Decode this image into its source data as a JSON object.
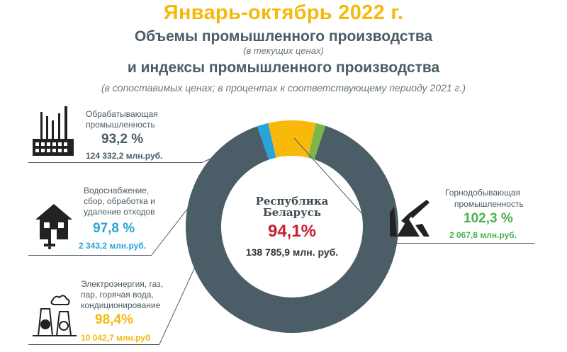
{
  "header": {
    "title": "Январь-октябрь 2022 г.",
    "line1": "Объемы промышленного производства",
    "note1": "(в текущих ценах)",
    "line2": "и индексы промышленного производства",
    "note2": "(в сопоставимых ценах; в процентах к соответствующему периоду 2021 г.)"
  },
  "center": {
    "name_line1": "Республика",
    "name_line2": "Беларусь",
    "percent": "94,1%",
    "amount": "138 785,9 млн. руб."
  },
  "sectors": {
    "manufacturing": {
      "label_line1": "Обрабатывающая",
      "label_line2": "промышленность",
      "percent": "93,2 %",
      "amount": "124 332,2 млн.руб.",
      "color": "#4b5d66",
      "icon": "factory-icon"
    },
    "water": {
      "label_line1": "Водоснабжение,",
      "label_line2": "сбор, обработка и",
      "label_line3": "удаление отходов",
      "percent": "97,8 %",
      "amount": "2 343,2 млн.руб.",
      "color": "#2aa3d8",
      "icon": "house-icon"
    },
    "energy": {
      "label_line1": "Электроэнергия, газ,",
      "label_line2": "пар, горячая вода,",
      "label_line3": "кондиционирование",
      "percent": "98,4%",
      "amount": "10 042,7 млн.руб",
      "color": "#f9b90b",
      "icon": "power-plant-icon"
    },
    "mining": {
      "label_line1": "Горнодобывающая",
      "label_line2": "промышленность",
      "percent": "102,3 %",
      "amount": "2 067,8 млн.руб.",
      "color": "#7ab648",
      "icon": "mining-icon"
    }
  },
  "chart_data": {
    "type": "pie",
    "categories": [
      "Обрабатывающая промышленность",
      "Водоснабжение, сбор, обработка и удаление отходов",
      "Электроэнергия, газ, пар, горячая вода, кондиционирование",
      "Горнодобывающая промышленность"
    ],
    "values": [
      124332.2,
      2343.2,
      10042.7,
      2067.8
    ],
    "indices": [
      93.2,
      97.8,
      98.4,
      102.3
    ],
    "total": 138785.9,
    "total_index": 94.1,
    "colors": [
      "#4b5d66",
      "#2aa3d8",
      "#f9b90b",
      "#7ab648"
    ],
    "donut": true
  }
}
